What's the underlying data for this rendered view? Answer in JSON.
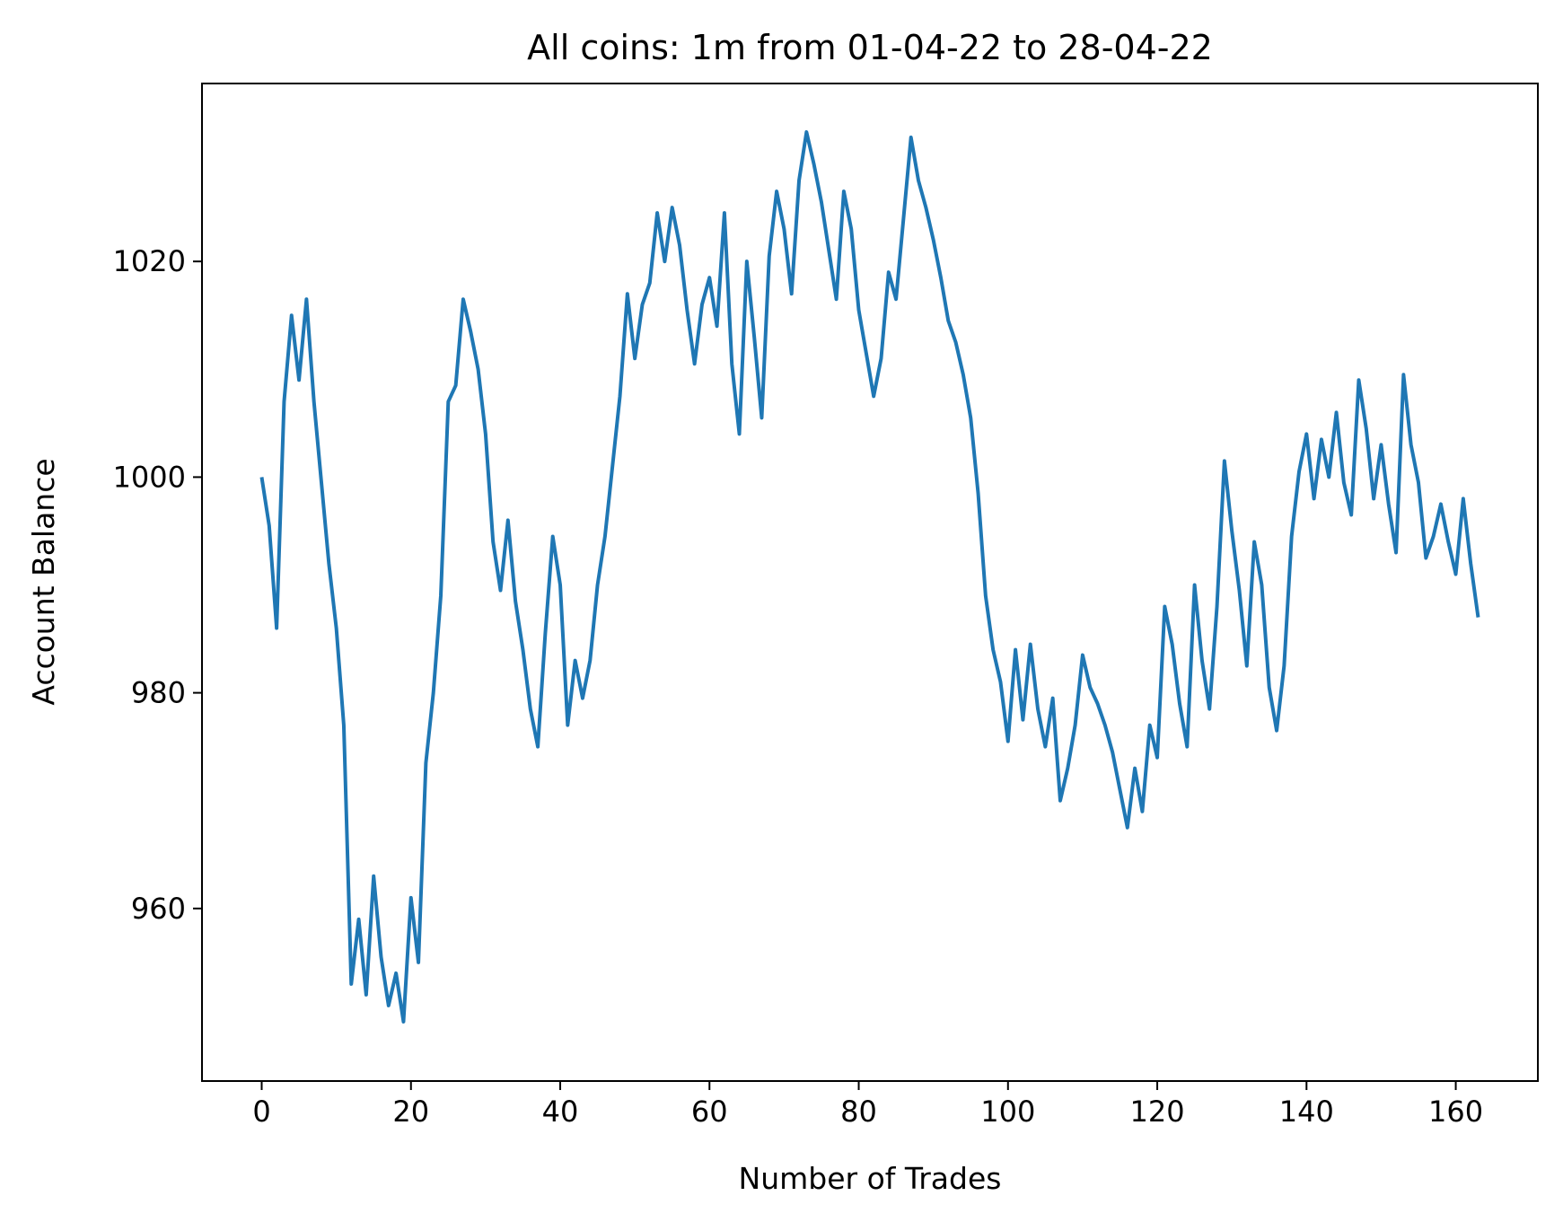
{
  "chart_data": {
    "type": "line",
    "title": "All coins: 1m from 01-04-22 to 28-04-22",
    "xlabel": "Number of Trades",
    "ylabel": "Account Balance",
    "xlim": [
      -8,
      171
    ],
    "ylim": [
      944,
      1036.5
    ],
    "xticks": [
      0,
      20,
      40,
      60,
      80,
      100,
      120,
      140,
      160
    ],
    "yticks": [
      960,
      980,
      1000,
      1020
    ],
    "grid": false,
    "legend": "none",
    "series": [
      {
        "color": "#1f77b4",
        "x": [
          0,
          1,
          2,
          3,
          4,
          5,
          6,
          7,
          8,
          9,
          10,
          11,
          12,
          13,
          14,
          15,
          16,
          17,
          18,
          19,
          20,
          21,
          22,
          23,
          24,
          25,
          26,
          27,
          28,
          29,
          30,
          31,
          32,
          33,
          34,
          35,
          36,
          37,
          38,
          39,
          40,
          41,
          42,
          43,
          44,
          45,
          46,
          47,
          48,
          49,
          50,
          51,
          52,
          53,
          54,
          55,
          56,
          57,
          58,
          59,
          60,
          61,
          62,
          63,
          64,
          65,
          66,
          67,
          68,
          69,
          70,
          71,
          72,
          73,
          74,
          75,
          76,
          77,
          78,
          79,
          80,
          81,
          82,
          83,
          84,
          85,
          86,
          87,
          88,
          89,
          90,
          91,
          92,
          93,
          94,
          95,
          96,
          97,
          98,
          99,
          100,
          101,
          102,
          103,
          104,
          105,
          106,
          107,
          108,
          109,
          110,
          111,
          112,
          113,
          114,
          115,
          116,
          117,
          118,
          119,
          120,
          121,
          122,
          123,
          124,
          125,
          126,
          127,
          128,
          129,
          130,
          131,
          132,
          133,
          134,
          135,
          136,
          137,
          138,
          139,
          140,
          141,
          142,
          143,
          144,
          145,
          146,
          147,
          148,
          149,
          150,
          151,
          152,
          153,
          154,
          155,
          156,
          157,
          158,
          159,
          160,
          161,
          162,
          163
        ],
        "y": [
          1000,
          995.5,
          986,
          1007,
          1015,
          1009,
          1016.5,
          1007,
          999.5,
          992,
          986,
          977,
          953,
          959,
          952,
          963,
          955.5,
          951,
          954,
          949.5,
          961,
          955,
          973.5,
          980,
          989,
          1007,
          1008.5,
          1016.5,
          1013.5,
          1010,
          1004,
          994,
          989.5,
          996,
          988.5,
          984,
          978.5,
          975,
          985.5,
          994.5,
          990,
          977,
          983,
          979.5,
          983,
          990,
          994.5,
          1001,
          1007.5,
          1017,
          1011,
          1016,
          1018,
          1024.5,
          1020,
          1025,
          1021.5,
          1015.5,
          1010.5,
          1016,
          1018.5,
          1014,
          1024.5,
          1010.5,
          1004,
          1020,
          1013,
          1005.5,
          1020.5,
          1026.5,
          1023,
          1017,
          1027.5,
          1032,
          1029,
          1025.5,
          1021,
          1016.5,
          1026.5,
          1023,
          1015.5,
          1011.5,
          1007.5,
          1011,
          1019,
          1016.5,
          1024,
          1031.5,
          1027.5,
          1025,
          1022,
          1018.5,
          1014.5,
          1012.5,
          1009.5,
          1005.5,
          998.5,
          989,
          984,
          981,
          975.5,
          984,
          977.5,
          984.5,
          978.5,
          975,
          979.5,
          970,
          973,
          977,
          983.5,
          980.5,
          979,
          977,
          974.5,
          971,
          967.5,
          973,
          969,
          977,
          974,
          988,
          984.5,
          979,
          975,
          990,
          983,
          978.5,
          988,
          1001.5,
          995,
          989.5,
          982.5,
          994,
          990,
          980.5,
          976.5,
          982.5,
          994.5,
          1000.5,
          1004,
          998,
          1003.5,
          1000,
          1006,
          999.5,
          996.5,
          1009,
          1004.5,
          998,
          1003,
          997.5,
          993,
          1009.5,
          1003,
          999.5,
          992.5,
          994.5,
          997.5,
          994,
          991,
          998,
          992,
          987
        ]
      }
    ]
  }
}
